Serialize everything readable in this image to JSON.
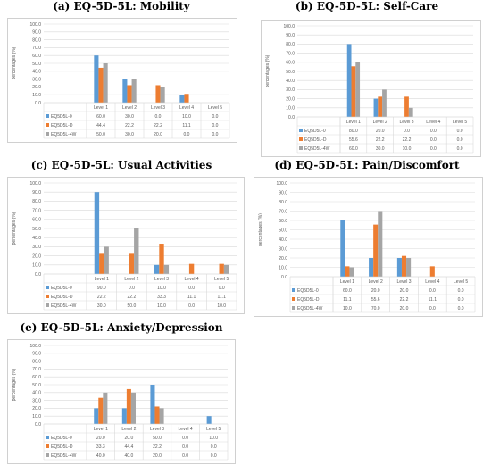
{
  "colors": {
    "series": [
      "#5b9bd5",
      "#ed7d31",
      "#a5a5a5"
    ],
    "grid": "#d9d9d9",
    "text": "#595959"
  },
  "chart_data": [
    {
      "type": "bar",
      "title": "(a) EQ-5D-5L: Mobility",
      "ylabel": "percentages (%)",
      "ylim": [
        0,
        100
      ],
      "yticks": [
        "0.0",
        "10.0",
        "20.0",
        "30.0",
        "40.0",
        "50.0",
        "60.0",
        "70.0",
        "80.0",
        "90.0",
        "100.0"
      ],
      "categories": [
        "Level 1",
        "Level 2",
        "Level 3",
        "Level 4",
        "Level 5"
      ],
      "series": [
        {
          "name": "EQ5D5L-0",
          "values": [
            60.0,
            30.0,
            0.0,
            10.0,
            0.0
          ],
          "labels": [
            "60.0",
            "30.0",
            "0.0",
            "10.0",
            "0.0"
          ]
        },
        {
          "name": "EQ5D5L-D",
          "values": [
            44.4,
            22.2,
            22.2,
            11.1,
            0.0
          ],
          "labels": [
            "44.4",
            "22.2",
            "22.2",
            "11.1",
            "0.0"
          ]
        },
        {
          "name": "EQ5D5L-4W",
          "values": [
            50.0,
            30.0,
            20.0,
            0.0,
            0.0
          ],
          "labels": [
            "50.0",
            "30.0",
            "20.0",
            "0.0",
            "0.0"
          ]
        }
      ]
    },
    {
      "type": "bar",
      "title": "(b) EQ-5D-5L: Self-Care",
      "ylabel": "percentages (%)",
      "ylim": [
        0,
        100
      ],
      "yticks": [
        "0.0",
        "10.0",
        "20.0",
        "30.0",
        "40.0",
        "50.0",
        "60.0",
        "70.0",
        "80.0",
        "90.0",
        "100.0"
      ],
      "categories": [
        "Level 1",
        "Level 2",
        "Level 3",
        "Level 4",
        "Level 5"
      ],
      "series": [
        {
          "name": "EQ5D5L-0",
          "values": [
            80.0,
            20.0,
            0.0,
            0.0,
            0.0
          ],
          "labels": [
            "80.0",
            "20.0",
            "0.0",
            "0.0",
            "0.0"
          ]
        },
        {
          "name": "EQ5D5L-D",
          "values": [
            55.6,
            22.2,
            22.2,
            0.0,
            0.0
          ],
          "labels": [
            "55.6",
            "22.2",
            "22.2",
            "0.0",
            "0.0"
          ]
        },
        {
          "name": "EQ5D5L-4W",
          "values": [
            60.0,
            30.0,
            10.0,
            0.0,
            0.0
          ],
          "labels": [
            "60.0",
            "30.0",
            "10.0",
            "0.0",
            "0.0"
          ]
        }
      ]
    },
    {
      "type": "bar",
      "title": "(c) EQ-5D-5L: Usual Activities",
      "ylabel": "percentages (%)",
      "ylim": [
        0,
        100
      ],
      "yticks": [
        "0.0",
        "10.0",
        "20.0",
        "30.0",
        "40.0",
        "50.0",
        "60.0",
        "70.0",
        "80.0",
        "90.0",
        "100.0"
      ],
      "categories": [
        "Level 1",
        "Level 2",
        "Level 3",
        "Level 4",
        "Level 5"
      ],
      "series": [
        {
          "name": "EQ5D5L-0",
          "values": [
            90.0,
            0.0,
            10.0,
            0.0,
            0.0
          ],
          "labels": [
            "90.0",
            "0.0",
            "10.0",
            "0.0",
            "0.0"
          ]
        },
        {
          "name": "EQ5D5L-D",
          "values": [
            22.2,
            22.2,
            33.3,
            11.1,
            11.1
          ],
          "labels": [
            "22.2",
            "22.2",
            "33.3",
            "11.1",
            "11.1"
          ]
        },
        {
          "name": "EQ5D5L-4W",
          "values": [
            30.0,
            50.0,
            10.0,
            0.0,
            10.0
          ],
          "labels": [
            "30.0",
            "50.0",
            "10.0",
            "0.0",
            "10.0"
          ]
        }
      ]
    },
    {
      "type": "bar",
      "title": "(d) EQ-5D-5L: Pain/Discomfort",
      "ylabel": "percentages (%)",
      "ylim": [
        0,
        100
      ],
      "yticks": [
        "0.0",
        "10.0",
        "20.0",
        "30.0",
        "40.0",
        "50.0",
        "60.0",
        "70.0",
        "80.0",
        "90.0",
        "100.0"
      ],
      "categories": [
        "Level 1",
        "Level 2",
        "Level 3",
        "Level 4",
        "Level 5"
      ],
      "series": [
        {
          "name": "EQ5D5L-0",
          "values": [
            60.0,
            20.0,
            20.0,
            0.0,
            0.0
          ],
          "labels": [
            "60.0",
            "20.0",
            "20.0",
            "0.0",
            "0.0"
          ]
        },
        {
          "name": "EQ5D5L-D",
          "values": [
            11.1,
            55.6,
            22.2,
            11.1,
            0.0
          ],
          "labels": [
            "11.1",
            "55.6",
            "22.2",
            "11.1",
            "0.0"
          ]
        },
        {
          "name": "EQ5D5L-4W",
          "values": [
            10.0,
            70.0,
            20.0,
            0.0,
            0.0
          ],
          "labels": [
            "10.0",
            "70.0",
            "20.0",
            "0.0",
            "0.0"
          ]
        }
      ]
    },
    {
      "type": "bar",
      "title": "(e) EQ-5D-5L: Anxiety/Depression",
      "ylabel": "percentages (%)",
      "ylim": [
        0,
        100
      ],
      "yticks": [
        "0.0",
        "10.0",
        "20.0",
        "30.0",
        "40.0",
        "50.0",
        "60.0",
        "70.0",
        "80.0",
        "90.0",
        "100.0"
      ],
      "categories": [
        "Level 1",
        "Level 2",
        "Level 3",
        "Level 4",
        "Level 5"
      ],
      "series": [
        {
          "name": "EQ5D5L-0",
          "values": [
            20.0,
            20.0,
            50.0,
            0.0,
            10.0
          ],
          "labels": [
            "20.0",
            "20.0",
            "50.0",
            "0.0",
            "10.0"
          ]
        },
        {
          "name": "EQ5D5L-D",
          "values": [
            33.3,
            44.4,
            22.2,
            0.0,
            0.0
          ],
          "labels": [
            "33.3",
            "44.4",
            "22.2",
            "0.0",
            "0.0"
          ]
        },
        {
          "name": "EQ5D5L-4W",
          "values": [
            40.0,
            40.0,
            20.0,
            0.0,
            0.0
          ],
          "labels": [
            "40.0",
            "40.0",
            "20.0",
            "0.0",
            "0.0"
          ]
        }
      ]
    }
  ]
}
